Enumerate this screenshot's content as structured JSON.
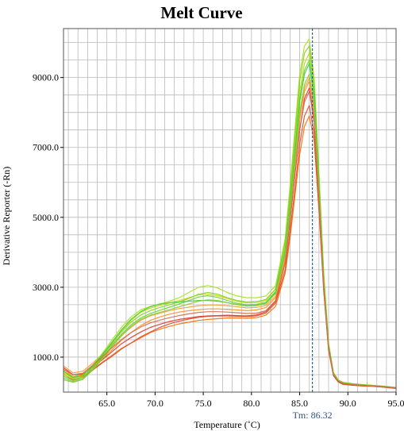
{
  "chart_data": {
    "type": "line",
    "title": "Melt Curve",
    "xlabel": "Temperature (˚C)",
    "ylabel": "Derivative Reporter (-Rn)",
    "xlim": [
      60.5,
      95.0
    ],
    "ylim": [
      0,
      10400
    ],
    "xticks": [
      65.0,
      70.0,
      75.0,
      80.0,
      85.0,
      90.0,
      95.0
    ],
    "xtick_labels": [
      "65.0",
      "70.0",
      "75.0",
      "80.0",
      "85.0",
      "90.0",
      "95.0"
    ],
    "yticks": [
      1000,
      3000,
      5000,
      7000,
      9000
    ],
    "ytick_labels": [
      "1000.0",
      "3000.0",
      "5000.0",
      "7000.0",
      "9000.0"
    ],
    "grid": true,
    "tm_value": 86.32,
    "tm_label": "Tm: 86.32",
    "colors": {
      "tm_line": "#2a5cb0",
      "grid": "#b9b9b9",
      "series_palette": [
        "#ff6a00",
        "#e6322b",
        "#d94a2a",
        "#ff8c1a",
        "#f0a030",
        "#c8d400",
        "#a8e020",
        "#7fd22a",
        "#62d42e",
        "#3fcf3a",
        "#8cc83c",
        "#d26a4a"
      ]
    },
    "x": [
      60.5,
      61.5,
      62.5,
      63.5,
      64.5,
      65.5,
      66.5,
      67.5,
      68.5,
      69.5,
      70.5,
      71.5,
      72.5,
      73.5,
      74.5,
      75.5,
      76.5,
      77.5,
      78.5,
      79.5,
      80.5,
      81.5,
      82.5,
      83.5,
      84.0,
      84.5,
      85.0,
      85.5,
      86.0,
      86.5,
      87.0,
      87.5,
      88.0,
      88.5,
      89.0,
      89.5,
      90.5,
      91.5,
      92.5,
      93.5,
      95.0
    ],
    "series": [
      {
        "values": [
          600,
          400,
          450,
          650,
          850,
          1050,
          1250,
          1400,
          1550,
          1700,
          1800,
          1880,
          1950,
          2000,
          2050,
          2080,
          2100,
          2120,
          2120,
          2110,
          2130,
          2200,
          2450,
          3400,
          4400,
          5600,
          6800,
          7600,
          7900,
          7200,
          5200,
          2900,
          1200,
          480,
          300,
          230,
          200,
          180,
          170,
          150,
          110
        ]
      },
      {
        "values": [
          700,
          500,
          520,
          700,
          920,
          1150,
          1380,
          1560,
          1720,
          1850,
          1940,
          2020,
          2080,
          2120,
          2160,
          2180,
          2190,
          2200,
          2190,
          2180,
          2210,
          2300,
          2600,
          3700,
          4900,
          6200,
          7500,
          8400,
          8700,
          7800,
          5600,
          3000,
          1250,
          500,
          310,
          240,
          210,
          190,
          175,
          155,
          115
        ]
      },
      {
        "values": [
          500,
          350,
          420,
          620,
          830,
          1020,
          1230,
          1400,
          1580,
          1720,
          1850,
          1950,
          2030,
          2090,
          2140,
          2170,
          2180,
          2180,
          2170,
          2160,
          2180,
          2260,
          2550,
          3500,
          4600,
          5800,
          7100,
          7900,
          8200,
          7400,
          5300,
          2900,
          1200,
          470,
          290,
          220,
          195,
          175,
          165,
          145,
          105
        ]
      },
      {
        "values": [
          650,
          450,
          500,
          720,
          950,
          1200,
          1480,
          1700,
          1900,
          2050,
          2150,
          2230,
          2290,
          2330,
          2360,
          2380,
          2380,
          2370,
          2350,
          2330,
          2350,
          2420,
          2700,
          3800,
          5000,
          6400,
          7800,
          8600,
          8900,
          8000,
          5700,
          3100,
          1300,
          520,
          320,
          250,
          215,
          195,
          180,
          160,
          120
        ]
      },
      {
        "values": [
          750,
          550,
          600,
          820,
          1080,
          1350,
          1620,
          1850,
          2050,
          2180,
          2260,
          2330,
          2390,
          2430,
          2470,
          2490,
          2490,
          2470,
          2440,
          2410,
          2420,
          2480,
          2750,
          3900,
          5100,
          6500,
          7900,
          8700,
          9000,
          8100,
          5800,
          3100,
          1300,
          520,
          330,
          260,
          225,
          200,
          185,
          165,
          125
        ]
      },
      {
        "values": [
          550,
          400,
          480,
          750,
          1050,
          1400,
          1750,
          2050,
          2280,
          2400,
          2480,
          2550,
          2620,
          2700,
          2780,
          2800,
          2760,
          2680,
          2600,
          2550,
          2560,
          2620,
          2950,
          4200,
          5600,
          7100,
          8600,
          9400,
          9700,
          8700,
          6100,
          3300,
          1350,
          540,
          340,
          270,
          235,
          210,
          190,
          170,
          130
        ]
      },
      {
        "values": [
          500,
          380,
          470,
          760,
          1100,
          1480,
          1850,
          2150,
          2350,
          2450,
          2520,
          2600,
          2700,
          2850,
          3000,
          3050,
          2980,
          2850,
          2750,
          2700,
          2700,
          2750,
          3050,
          4400,
          5900,
          7500,
          9100,
          9900,
          10100,
          9000,
          6300,
          3400,
          1400,
          560,
          350,
          280,
          240,
          215,
          195,
          175,
          135
        ]
      },
      {
        "values": [
          450,
          330,
          420,
          700,
          1020,
          1380,
          1720,
          2000,
          2200,
          2330,
          2420,
          2500,
          2580,
          2680,
          2800,
          2850,
          2800,
          2700,
          2620,
          2580,
          2590,
          2650,
          2950,
          4300,
          5700,
          7300,
          8900,
          9700,
          9900,
          8800,
          6200,
          3300,
          1380,
          550,
          345,
          275,
          238,
          212,
          192,
          172,
          132
        ]
      },
      {
        "values": [
          400,
          300,
          380,
          650,
          980,
          1320,
          1650,
          1920,
          2120,
          2250,
          2340,
          2430,
          2520,
          2620,
          2720,
          2760,
          2710,
          2620,
          2540,
          2500,
          2510,
          2570,
          2880,
          4100,
          5400,
          6900,
          8400,
          9200,
          9500,
          8500,
          6000,
          3200,
          1350,
          540,
          340,
          270,
          232,
          208,
          188,
          168,
          128
        ]
      },
      {
        "values": [
          600,
          420,
          480,
          740,
          1060,
          1420,
          1780,
          2080,
          2300,
          2440,
          2520,
          2560,
          2580,
          2600,
          2620,
          2620,
          2600,
          2560,
          2510,
          2470,
          2480,
          2540,
          2850,
          4000,
          5300,
          6800,
          8300,
          9100,
          9400,
          8400,
          5900,
          3200,
          1340,
          535,
          335,
          265,
          228,
          205,
          185,
          165,
          127
        ]
      },
      {
        "values": [
          350,
          280,
          360,
          620,
          940,
          1280,
          1600,
          1880,
          2080,
          2200,
          2280,
          2360,
          2440,
          2520,
          2600,
          2640,
          2620,
          2560,
          2500,
          2460,
          2470,
          2530,
          2820,
          3950,
          5200,
          6600,
          8000,
          8800,
          9100,
          8200,
          5800,
          3150,
          1320,
          530,
          330,
          262,
          226,
          203,
          183,
          163,
          125
        ]
      },
      {
        "values": [
          650,
          500,
          540,
          760,
          1000,
          1260,
          1500,
          1700,
          1860,
          1980,
          2060,
          2130,
          2190,
          2240,
          2280,
          2300,
          2300,
          2290,
          2270,
          2250,
          2260,
          2330,
          2620,
          3700,
          4900,
          6200,
          7500,
          8300,
          8600,
          7700,
          5500,
          3000,
          1260,
          505,
          315,
          248,
          215,
          192,
          178,
          158,
          118
        ]
      }
    ]
  }
}
